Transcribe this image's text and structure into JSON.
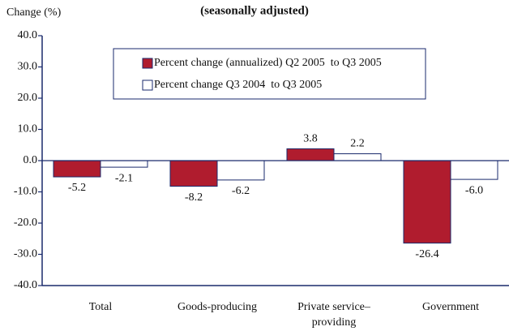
{
  "chart_data": {
    "type": "bar",
    "subtitle": "(seasonally adjusted)",
    "y_label": "Change (%)",
    "categories": [
      "Total",
      "Goods-producing",
      "Private service–providing",
      "Government"
    ],
    "series": [
      {
        "name": "Percent change (annualized) Q2 2005  to Q3 2005",
        "color": "#b01c2e",
        "values": [
          -5.2,
          -8.2,
          3.8,
          -26.4
        ],
        "value_labels": [
          "-5.2",
          "-8.2",
          "3.8",
          "-26.4"
        ]
      },
      {
        "name": "Percent change Q3 2004  to Q3 2005",
        "color": "#ffffff",
        "values": [
          -2.1,
          -6.2,
          2.2,
          -6.0
        ],
        "value_labels": [
          "-2.1",
          "-6.2",
          "2.2",
          "-6.0"
        ]
      }
    ],
    "ylim": [
      -40,
      40
    ],
    "yticks": [
      {
        "value": 40,
        "label": "40.0"
      },
      {
        "value": 30,
        "label": "30.0"
      },
      {
        "value": 20,
        "label": "20.0"
      },
      {
        "value": 10,
        "label": "10.0"
      },
      {
        "value": 0,
        "label": "0.0"
      },
      {
        "value": -10,
        "label": "-10.0"
      },
      {
        "value": -20,
        "label": "-20.0"
      },
      {
        "value": -30,
        "label": "-30.0"
      },
      {
        "value": -40,
        "label": "-40.0"
      }
    ],
    "legend": "top"
  }
}
